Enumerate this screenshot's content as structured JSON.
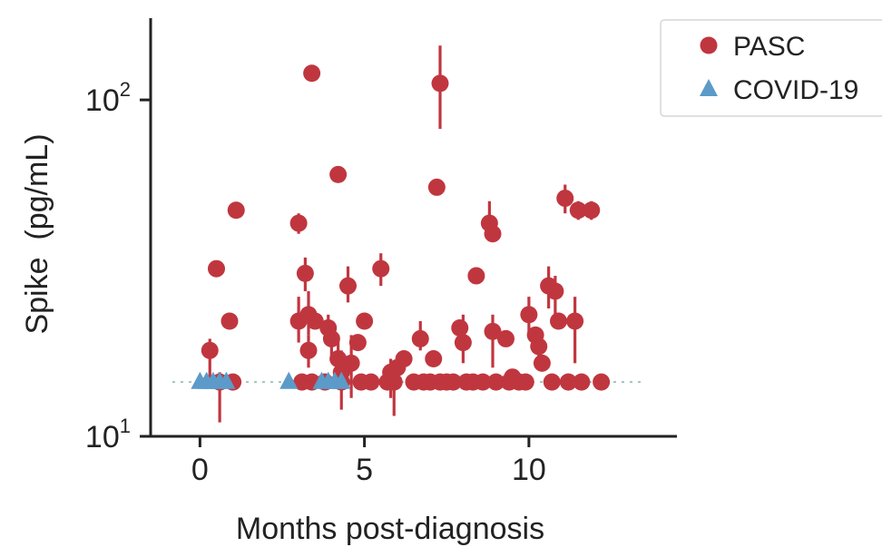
{
  "chart_data": {
    "type": "scatter",
    "title": "",
    "xlabel": "Months post-diagnosis",
    "ylabel": "Spike  (pg/mL)",
    "y_scale": "log",
    "xlim": [
      -1.5,
      14.5
    ],
    "ylim": [
      10,
      175
    ],
    "x_ticks": [
      0,
      5,
      10
    ],
    "x_tick_labels": [
      "0",
      "5",
      "10"
    ],
    "y_ticks": [
      10,
      100
    ],
    "y_tick_labels": [
      {
        "base": "10",
        "exp": "1"
      },
      {
        "base": "10",
        "exp": "2"
      }
    ],
    "reference_line": {
      "y": 14.5,
      "style": "dotted",
      "color": "#9fc5b8"
    },
    "legend": {
      "position": "top-right",
      "entries": [
        "PASC",
        "COVID-19"
      ]
    },
    "grid": false,
    "series": [
      {
        "name": "PASC",
        "marker": "circle",
        "color": "#c0363f",
        "points": [
          {
            "x": 0.3,
            "y": 18.0,
            "lo": 14.5,
            "hi": 19.5
          },
          {
            "x": 0.5,
            "y": 31.5
          },
          {
            "x": 0.6,
            "y": 14.5,
            "lo": 11.0,
            "hi": 15.5
          },
          {
            "x": 0.9,
            "y": 22.0
          },
          {
            "x": 1.1,
            "y": 47.0
          },
          {
            "x": 1.0,
            "y": 14.5
          },
          {
            "x": 3.0,
            "y": 43.0,
            "lo": 40.0,
            "hi": 46.0
          },
          {
            "x": 3.0,
            "y": 22.0,
            "lo": 19.0,
            "hi": 26.0
          },
          {
            "x": 3.2,
            "y": 30.5,
            "lo": 27.0,
            "hi": 34.0
          },
          {
            "x": 3.3,
            "y": 23.0,
            "lo": 20.0,
            "hi": 27.0
          },
          {
            "x": 3.3,
            "y": 18.0,
            "lo": 16.0,
            "hi": 20.0
          },
          {
            "x": 3.4,
            "y": 120.0
          },
          {
            "x": 3.5,
            "y": 22.0
          },
          {
            "x": 3.1,
            "y": 14.5
          },
          {
            "x": 3.4,
            "y": 14.5
          },
          {
            "x": 3.8,
            "y": 14.5
          },
          {
            "x": 3.9,
            "y": 21.0,
            "lo": 19.0,
            "hi": 23.0
          },
          {
            "x": 4.0,
            "y": 19.5,
            "lo": 17.0,
            "hi": 22.0
          },
          {
            "x": 4.2,
            "y": 60.0
          },
          {
            "x": 4.2,
            "y": 17.0,
            "lo": 14.5,
            "hi": 20.0
          },
          {
            "x": 4.3,
            "y": 15.5,
            "lo": 12.0,
            "hi": 18.0
          },
          {
            "x": 4.3,
            "y": 14.5
          },
          {
            "x": 4.5,
            "y": 28.0,
            "lo": 25.0,
            "hi": 32.0
          },
          {
            "x": 4.6,
            "y": 16.5,
            "lo": 13.0,
            "hi": 20.0
          },
          {
            "x": 4.8,
            "y": 19.0
          },
          {
            "x": 5.0,
            "y": 22.0
          },
          {
            "x": 4.9,
            "y": 14.5
          },
          {
            "x": 5.2,
            "y": 14.5
          },
          {
            "x": 5.5,
            "y": 31.5,
            "lo": 28.0,
            "hi": 35.0
          },
          {
            "x": 5.7,
            "y": 14.5
          },
          {
            "x": 5.8,
            "y": 15.5,
            "lo": 13.0,
            "hi": 17.0
          },
          {
            "x": 5.9,
            "y": 14.5,
            "lo": 11.5,
            "hi": 15.5
          },
          {
            "x": 6.0,
            "y": 16.0
          },
          {
            "x": 6.2,
            "y": 17.0
          },
          {
            "x": 6.5,
            "y": 14.5
          },
          {
            "x": 6.7,
            "y": 19.5,
            "lo": 18.0,
            "hi": 22.0
          },
          {
            "x": 6.8,
            "y": 14.5
          },
          {
            "x": 7.0,
            "y": 14.5
          },
          {
            "x": 7.1,
            "y": 17.0
          },
          {
            "x": 7.2,
            "y": 55.0
          },
          {
            "x": 7.3,
            "y": 112.0,
            "lo": 82.0,
            "hi": 145.0
          },
          {
            "x": 7.3,
            "y": 14.5
          },
          {
            "x": 7.5,
            "y": 14.5
          },
          {
            "x": 7.7,
            "y": 14.5
          },
          {
            "x": 7.9,
            "y": 21.0
          },
          {
            "x": 8.0,
            "y": 19.0,
            "lo": 16.5,
            "hi": 23.0
          },
          {
            "x": 8.1,
            "y": 14.5
          },
          {
            "x": 8.3,
            "y": 14.5
          },
          {
            "x": 8.4,
            "y": 30.0
          },
          {
            "x": 8.6,
            "y": 14.5
          },
          {
            "x": 8.8,
            "y": 43.0,
            "lo": 38.0,
            "hi": 50.0
          },
          {
            "x": 8.9,
            "y": 40.0
          },
          {
            "x": 8.9,
            "y": 20.5,
            "lo": 16.0,
            "hi": 23.0
          },
          {
            "x": 9.0,
            "y": 14.5
          },
          {
            "x": 9.3,
            "y": 19.5
          },
          {
            "x": 9.4,
            "y": 14.5
          },
          {
            "x": 9.5,
            "y": 15.0
          },
          {
            "x": 9.7,
            "y": 14.5
          },
          {
            "x": 9.9,
            "y": 14.5
          },
          {
            "x": 10.0,
            "y": 23.0,
            "lo": 20.0,
            "hi": 26.0
          },
          {
            "x": 10.2,
            "y": 20.0
          },
          {
            "x": 10.3,
            "y": 18.5,
            "lo": 16.0,
            "hi": 21.0
          },
          {
            "x": 10.4,
            "y": 16.5
          },
          {
            "x": 10.6,
            "y": 28.0,
            "lo": 24.0,
            "hi": 32.0
          },
          {
            "x": 10.7,
            "y": 14.5
          },
          {
            "x": 10.8,
            "y": 27.0,
            "lo": 22.0,
            "hi": 30.0
          },
          {
            "x": 10.9,
            "y": 22.0
          },
          {
            "x": 11.1,
            "y": 51.0,
            "lo": 46.0,
            "hi": 56.0
          },
          {
            "x": 11.2,
            "y": 14.5
          },
          {
            "x": 11.4,
            "y": 22.0,
            "lo": 16.5,
            "hi": 26.0
          },
          {
            "x": 11.5,
            "y": 47.0,
            "lo": 44.0,
            "hi": 50.0
          },
          {
            "x": 11.6,
            "y": 14.5
          },
          {
            "x": 11.9,
            "y": 47.0,
            "lo": 44.0,
            "hi": 50.0
          },
          {
            "x": 12.2,
            "y": 14.5
          }
        ]
      },
      {
        "name": "COVID-19",
        "marker": "triangle",
        "color": "#5b9ac9",
        "points": [
          {
            "x": 0.0,
            "y": 14.5
          },
          {
            "x": 0.2,
            "y": 14.5
          },
          {
            "x": 0.4,
            "y": 14.5
          },
          {
            "x": 0.6,
            "y": 14.5
          },
          {
            "x": 0.8,
            "y": 14.5
          },
          {
            "x": 2.7,
            "y": 14.5
          },
          {
            "x": 3.7,
            "y": 14.5
          },
          {
            "x": 3.9,
            "y": 14.5
          },
          {
            "x": 4.1,
            "y": 14.5
          },
          {
            "x": 4.3,
            "y": 14.5
          }
        ]
      }
    ]
  }
}
